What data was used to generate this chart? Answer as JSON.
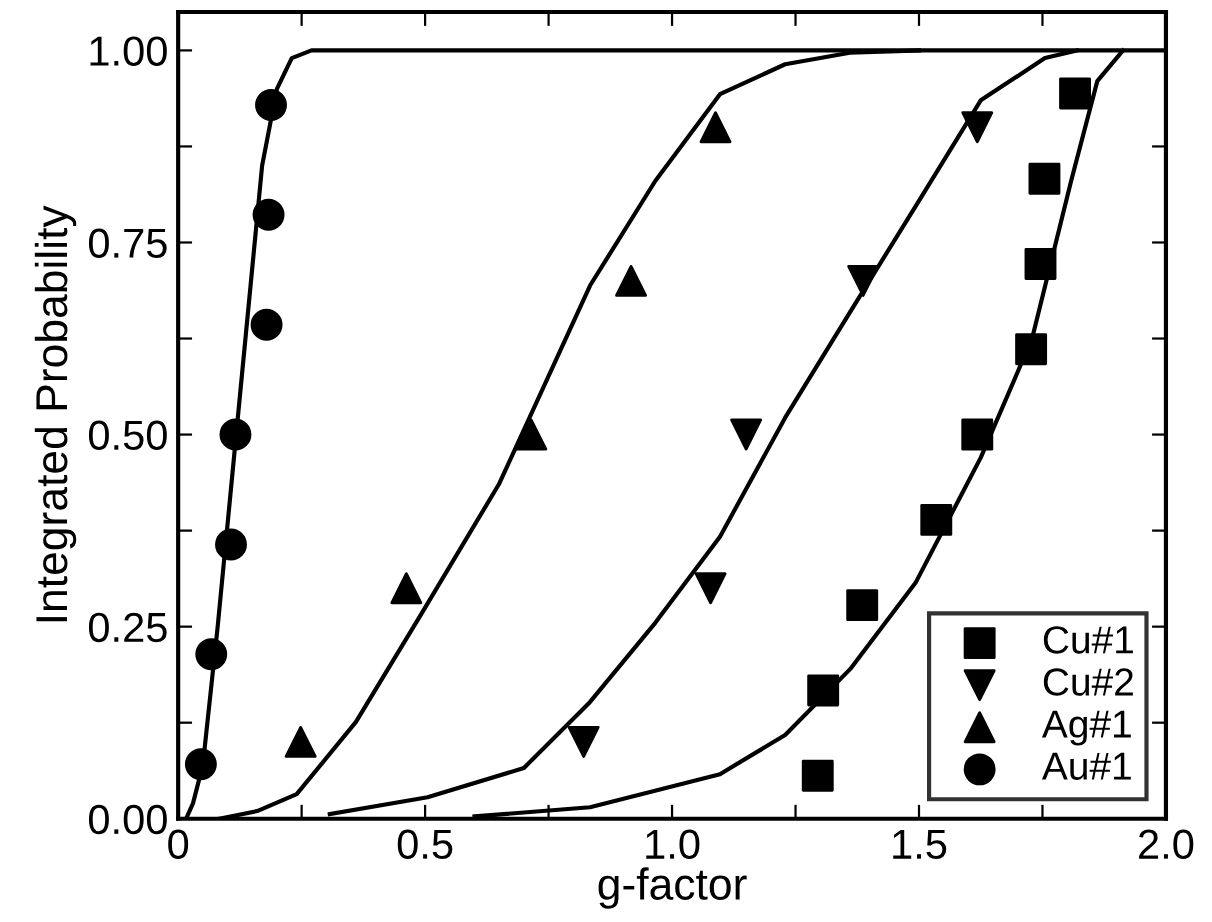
{
  "chart_data": {
    "type": "scatter",
    "xlabel": "g-factor",
    "ylabel": "Integrated Probability",
    "xlim": [
      0,
      2.0
    ],
    "ylim": [
      0,
      1.05
    ],
    "xticks": [
      0,
      {
        "value": 0.25,
        "label": null
      },
      0.5,
      {
        "value": 0.75,
        "label": null
      },
      {
        "value": 1.0,
        "label": "1.0"
      },
      {
        "value": 1.25,
        "label": null
      },
      1.5,
      {
        "value": 1.75,
        "label": null
      },
      {
        "value": 2.0,
        "label": "2.0"
      }
    ],
    "yticks": [
      {
        "value": 0.0,
        "label": "0.00"
      },
      {
        "value": 0.125,
        "label": null
      },
      {
        "value": 0.25,
        "label": "0.25"
      },
      {
        "value": 0.375,
        "label": null
      },
      {
        "value": 0.5,
        "label": "0.50"
      },
      {
        "value": 0.625,
        "label": null
      },
      {
        "value": 0.75,
        "label": "0.75"
      },
      {
        "value": 0.875,
        "label": null
      },
      {
        "value": 1.0,
        "label": "1.00"
      }
    ],
    "grid": false,
    "legend": "bottom right",
    "series": [
      {
        "name": "Cu#1",
        "marker": "square",
        "color": "#000000",
        "x": [
          1.295,
          1.306,
          1.385,
          1.535,
          1.618,
          1.727,
          1.746,
          1.754,
          1.816
        ],
        "values": [
          0.056,
          0.167,
          0.278,
          0.389,
          0.5,
          0.611,
          0.722,
          0.833,
          0.944
        ]
      },
      {
        "name": "Cu#2",
        "marker": "triangle_down",
        "color": "#000000",
        "x": [
          0.821,
          1.078,
          1.15,
          1.387,
          1.618
        ],
        "values": [
          0.1,
          0.3,
          0.5,
          0.7,
          0.9
        ]
      },
      {
        "name": "Ag#1",
        "marker": "triangle",
        "color": "#000000",
        "x": [
          0.248,
          0.462,
          0.715,
          0.917,
          1.088
        ],
        "values": [
          0.1,
          0.3,
          0.5,
          0.7,
          0.9
        ]
      },
      {
        "name": "Au#1",
        "marker": "circle",
        "color": "#000000",
        "x": [
          0.046,
          0.067,
          0.107,
          0.116,
          0.179,
          0.183,
          0.188
        ],
        "values": [
          0.071,
          0.214,
          0.357,
          0.5,
          0.643,
          0.786,
          0.929
        ]
      },
      {
        "type": "line",
        "color": "#000000",
        "line_style": "solid",
        "x": [
          0.6,
          0.834,
          1.097,
          1.229,
          1.361,
          1.493,
          1.625,
          1.729,
          1.808,
          1.861,
          1.913
        ],
        "values": [
          0.003,
          0.015,
          0.058,
          0.109,
          0.195,
          0.307,
          0.47,
          0.625,
          0.83,
          0.96,
          1.0
        ]
      },
      {
        "type": "line",
        "color": "#000000",
        "line_style": "solid",
        "x": [
          0.307,
          0.505,
          0.7,
          0.834,
          0.966,
          1.097,
          1.229,
          1.361,
          1.493,
          1.625,
          1.755,
          1.82
        ],
        "values": [
          0.006,
          0.028,
          0.066,
          0.152,
          0.255,
          0.367,
          0.522,
          0.66,
          0.797,
          0.935,
          0.99,
          1.0
        ]
      },
      {
        "type": "line",
        "color": "#000000",
        "line_style": "solid",
        "x": [
          0.083,
          0.16,
          0.24,
          0.36,
          0.49,
          0.65,
          0.834,
          0.966,
          1.097,
          1.229,
          1.36,
          1.5
        ],
        "values": [
          0.0,
          0.01,
          0.032,
          0.126,
          0.264,
          0.436,
          0.694,
          0.83,
          0.943,
          0.982,
          0.997,
          1.0
        ]
      },
      {
        "type": "line",
        "color": "#000000",
        "line_style": "solid",
        "x": [
          0.016,
          0.03,
          0.05,
          0.08,
          0.11,
          0.14,
          0.17,
          0.2,
          0.23,
          0.27,
          2.0
        ],
        "values": [
          0.0,
          0.02,
          0.07,
          0.25,
          0.45,
          0.65,
          0.85,
          0.95,
          0.99,
          1.0,
          1.0
        ]
      }
    ]
  }
}
